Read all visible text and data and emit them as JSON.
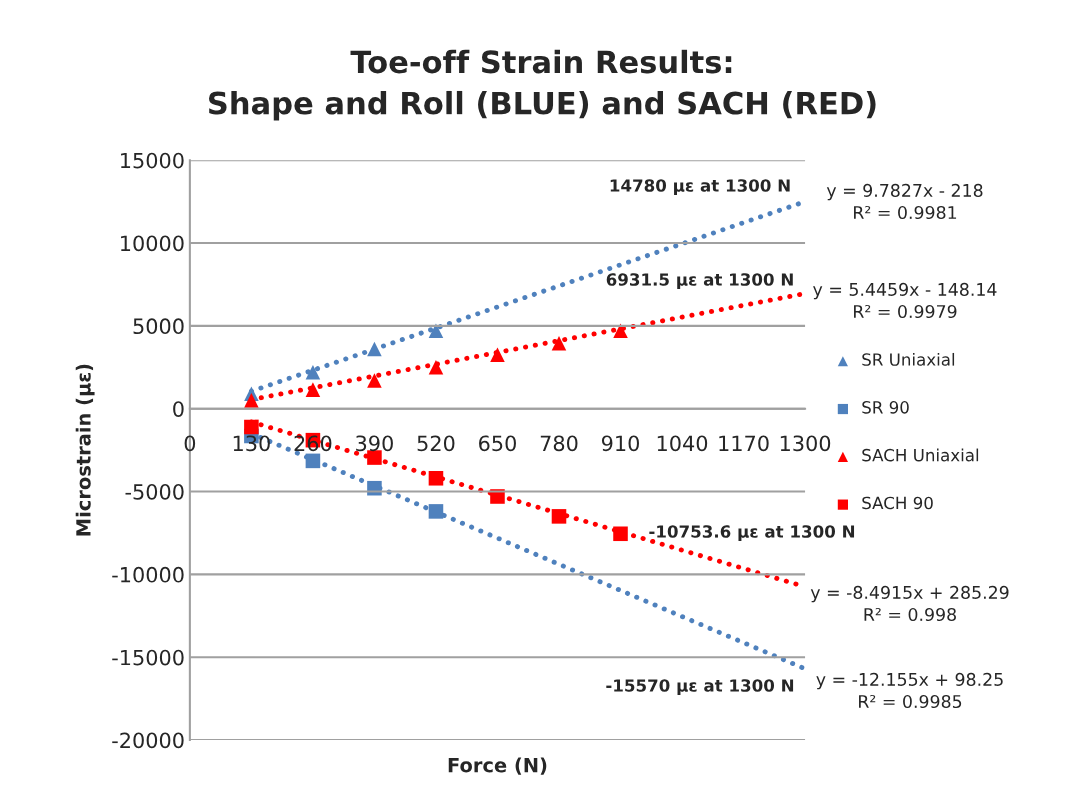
{
  "chart_data": {
    "type": "scatter",
    "title": "Toe-off Strain Results:\nShape and Roll (BLUE) and SACH (RED)",
    "xlabel": "Force (N)",
    "ylabel": "Microstrain (με)",
    "xlim": [
      0,
      1300
    ],
    "xticks": [
      0,
      130,
      260,
      390,
      520,
      650,
      780,
      910,
      1040,
      1170,
      1300
    ],
    "ylim": [
      -20000,
      15000
    ],
    "yticks": [
      -20000,
      -15000,
      -10000,
      -5000,
      0,
      5000,
      10000,
      15000
    ],
    "grid": "y",
    "legend": "right",
    "series": [
      {
        "name": "SR Uniaxial",
        "type": "scatter",
        "marker": "triangle",
        "color": "#4f81bd",
        "x": [
          130,
          260,
          390,
          520
        ],
        "values": [
          900,
          2200,
          3600,
          4700
        ]
      },
      {
        "name": "SR 90",
        "type": "scatter",
        "marker": "square",
        "color": "#4f81bd",
        "x": [
          130,
          260,
          390,
          520
        ],
        "values": [
          -1650,
          -3150,
          -4800,
          -6200
        ]
      },
      {
        "name": "SACH Uniaxial",
        "type": "scatter",
        "marker": "triangle",
        "color": "#ff0000",
        "x": [
          130,
          260,
          390,
          520,
          650,
          780,
          910
        ],
        "values": [
          500,
          1150,
          1700,
          2500,
          3250,
          3950,
          4700
        ]
      },
      {
        "name": "SACH 90",
        "type": "scatter",
        "marker": "square",
        "color": "#ff0000",
        "x": [
          130,
          260,
          390,
          520,
          650,
          780,
          910
        ],
        "values": [
          -1100,
          -1900,
          -2950,
          -4200,
          -5300,
          -6500,
          -7550
        ]
      },
      {
        "type": "line",
        "line_style": "dotted",
        "marker": "none",
        "color": "#4f81bd",
        "x": [
          130,
          1300
        ],
        "values": [
          1050,
          12500
        ]
      },
      {
        "type": "line",
        "line_style": "dotted",
        "marker": "none",
        "color": "#ff0000",
        "x": [
          130,
          1300
        ],
        "values": [
          550,
          6950
        ]
      },
      {
        "type": "line",
        "line_style": "dotted",
        "marker": "none",
        "color": "#4f81bd",
        "x": [
          130,
          1300
        ],
        "values": [
          -1500,
          -15700
        ]
      },
      {
        "type": "line",
        "line_style": "dotted",
        "marker": "none",
        "color": "#ff0000",
        "x": [
          130,
          1300
        ],
        "values": [
          -800,
          -10750
        ]
      }
    ],
    "annotations": [
      "14780 με at 1300 N",
      "y = 9.7827x - 218\nR² = 0.9981",
      "6931.5 με at 1300 N",
      "y = 5.4459x - 148.14\nR² = 0.9979",
      "-10753.6 με at 1300 N",
      "y = -8.4915x + 285.29\nR² = 0.998",
      "-15570 με at 1300 N",
      "y = -12.155x + 98.25\nR² = 0.9985"
    ]
  }
}
